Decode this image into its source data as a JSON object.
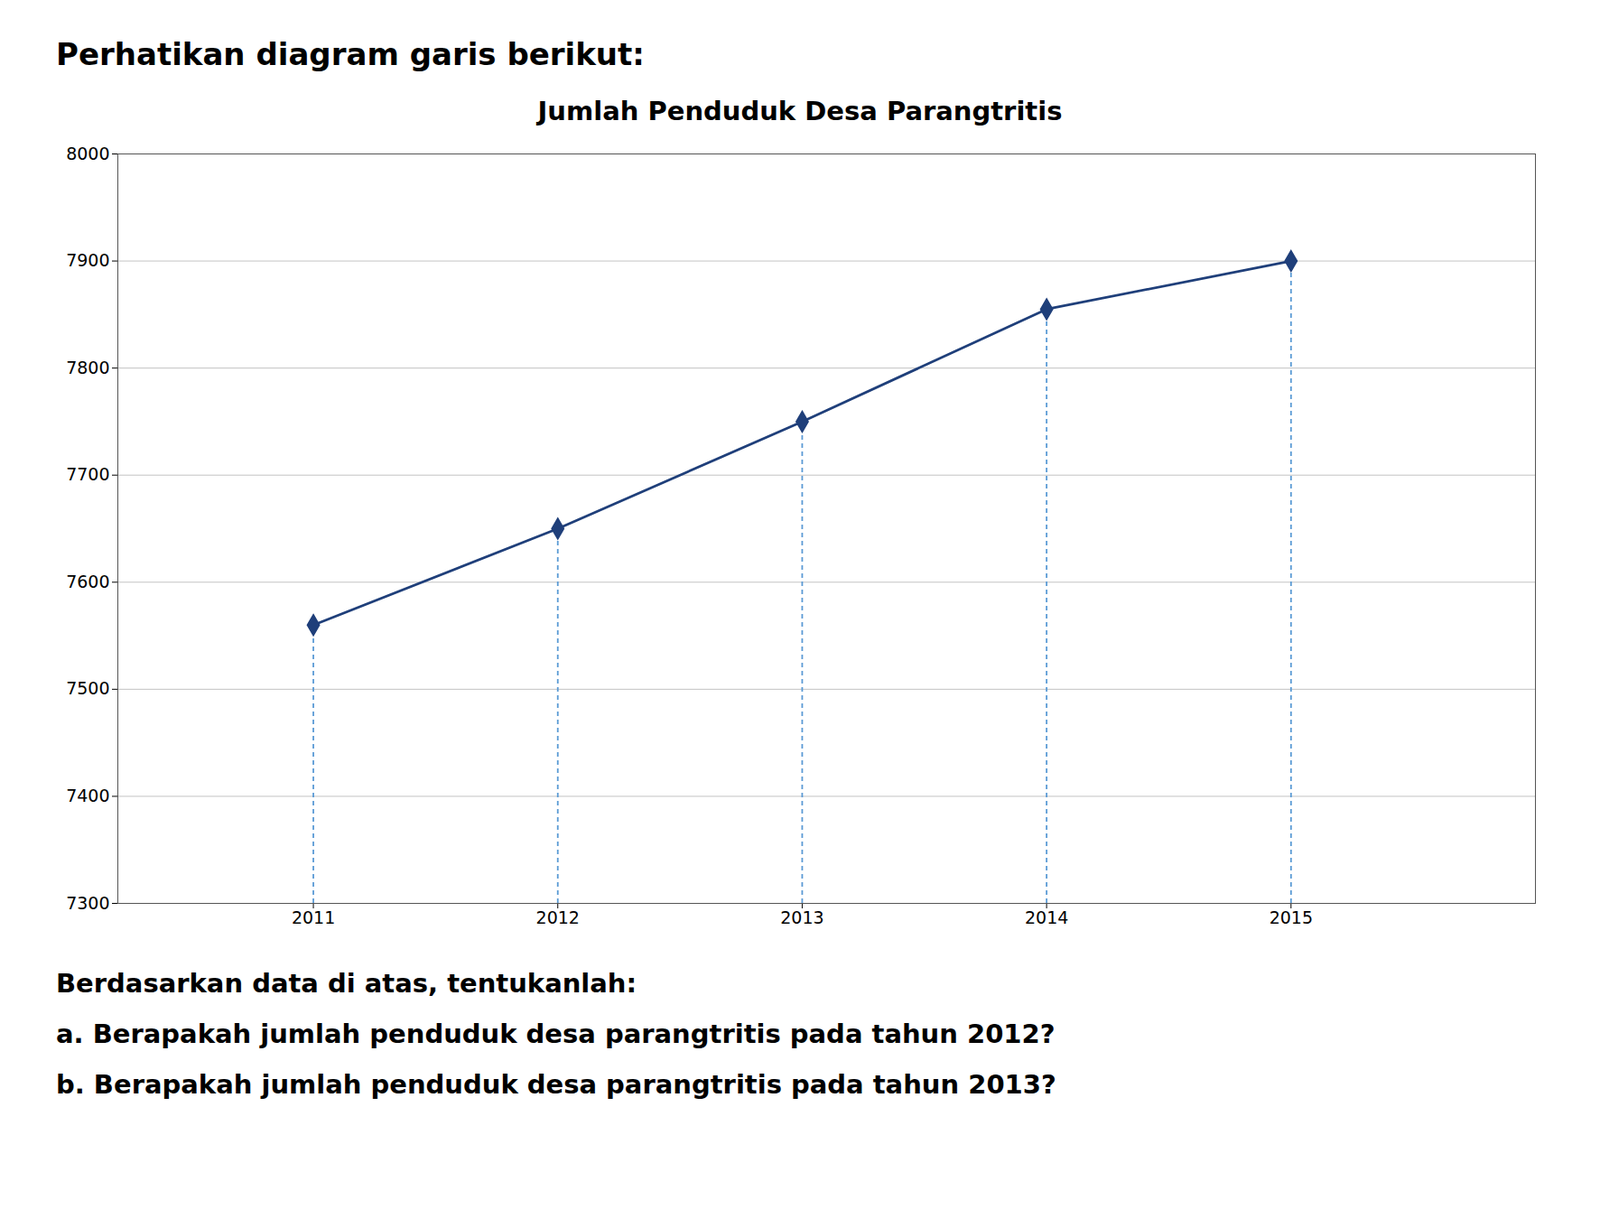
{
  "chart_data": {
    "type": "line",
    "title": "Jumlah Penduduk Desa Parangtritis",
    "x": [
      2011,
      2012,
      2013,
      2014,
      2015
    ],
    "values": [
      7560,
      7650,
      7750,
      7855,
      7900
    ],
    "xlim": [
      2010.2,
      2016.0
    ],
    "xticks": [
      2011,
      2012,
      2013,
      2014,
      2015
    ],
    "ylim": [
      7300,
      8000
    ],
    "yticks": [
      7300,
      7400,
      7500,
      7600,
      7700,
      7800,
      7900,
      8000
    ],
    "color": "#1F3F7A",
    "marker": "diamond",
    "grid": "y",
    "drop_lines": {
      "color": "#5B9BD5",
      "line_style": "dashed"
    },
    "annotations": [
      "Perhatikan diagram garis berikut:",
      "Berdasarkan data di atas, tentukanlah:",
      "a.  Berapakah jumlah penduduk  desa parangtritis pada tahun 2012?",
      "b.  Berapakah jumlah penduduk  desa parangtritis pada tahun 2013?"
    ]
  }
}
